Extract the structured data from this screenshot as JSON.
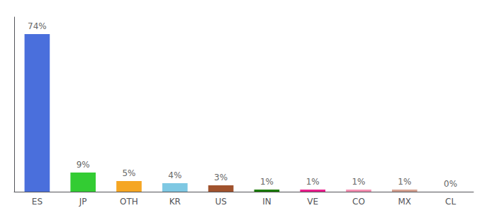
{
  "chart_data": {
    "type": "bar",
    "categories": [
      "ES",
      "JP",
      "OTH",
      "KR",
      "US",
      "IN",
      "VE",
      "CO",
      "MX",
      "CL"
    ],
    "values": [
      74,
      9,
      5,
      4,
      3,
      1,
      1,
      1,
      1,
      0
    ],
    "value_labels": [
      "74%",
      "9%",
      "5%",
      "4%",
      "3%",
      "1%",
      "1%",
      "1%",
      "1%",
      "0%"
    ],
    "colors": [
      "#4a6fdc",
      "#33cc33",
      "#f5a623",
      "#7ec8e3",
      "#a0522d",
      "#1a7a00",
      "#e91e8c",
      "#f48fb1",
      "#d4a090",
      "#cccccc"
    ],
    "ylim": [
      0,
      82
    ],
    "data_labels": true,
    "tick_labels": "x",
    "grid": false
  }
}
